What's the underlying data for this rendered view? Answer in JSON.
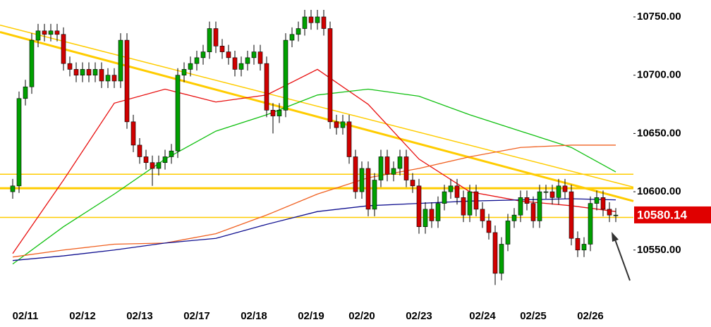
{
  "chart_data": {
    "type": "candlestick",
    "categories": [
      null,
      null,
      "02/11",
      null,
      null,
      null,
      null,
      null,
      null,
      null,
      null,
      "02/12",
      null,
      null,
      null,
      null,
      null,
      null,
      null,
      null,
      "02/13",
      null,
      null,
      null,
      null,
      null,
      null,
      null,
      null,
      "02/17",
      null,
      null,
      null,
      null,
      null,
      null,
      null,
      null,
      "02/18",
      null,
      null,
      null,
      null,
      null,
      null,
      null,
      null,
      "02/19",
      null,
      null,
      null,
      null,
      null,
      null,
      null,
      "02/20",
      null,
      null,
      null,
      null,
      null,
      null,
      null,
      null,
      "02/23",
      null,
      null,
      null,
      null,
      null,
      null,
      null,
      null,
      null,
      "02/24",
      null,
      null,
      null,
      null,
      null,
      null,
      null,
      "02/25",
      null,
      null,
      null,
      null,
      null,
      null,
      null,
      null,
      "02/26",
      null,
      null,
      null,
      null
    ],
    "open": [
      10600,
      10605,
      10680,
      10690,
      10730,
      10738,
      10735,
      10738,
      10735,
      10710,
      10705,
      10700,
      10705,
      10700,
      10705,
      10695,
      10700,
      10695,
      10730,
      10660,
      10640,
      10630,
      10625,
      10620,
      10625,
      10630,
      10635,
      10700,
      10705,
      10710,
      10715,
      10720,
      10740,
      10725,
      10720,
      10715,
      10705,
      10710,
      10715,
      10720,
      10710,
      10670,
      10665,
      10670,
      10730,
      10735,
      10740,
      10750,
      10745,
      10750,
      10740,
      10660,
      10655,
      10660,
      10630,
      10600,
      10620,
      10585,
      10610,
      10630,
      10615,
      10620,
      10630,
      10610,
      10605,
      10570,
      10585,
      10575,
      10590,
      10600,
      10605,
      10595,
      10580,
      10600,
      10585,
      10575,
      10565,
      10530,
      10555,
      10575,
      10580,
      10595,
      10590,
      10575,
      10600,
      10600,
      10595,
      10605,
      10600,
      10560,
      10550,
      10555,
      10590,
      10595,
      10585,
      10580
    ],
    "high": [
      10611,
      10686,
      10696,
      10736,
      10744,
      10744,
      10744,
      10744,
      10741,
      10716,
      10711,
      10711,
      10711,
      10711,
      10711,
      10706,
      10706,
      10736,
      10736,
      10666,
      10646,
      10636,
      10631,
      10631,
      10636,
      10641,
      10706,
      10711,
      10716,
      10721,
      10726,
      10746,
      10746,
      10731,
      10726,
      10721,
      10716,
      10721,
      10726,
      10726,
      10716,
      10676,
      10676,
      10736,
      10741,
      10746,
      10756,
      10756,
      10756,
      10756,
      10746,
      10666,
      10666,
      10666,
      10636,
      10626,
      10626,
      10616,
      10636,
      10636,
      10626,
      10636,
      10636,
      10616,
      10611,
      10591,
      10591,
      10596,
      10606,
      10611,
      10611,
      10601,
      10606,
      10606,
      10591,
      10581,
      10571,
      10561,
      10581,
      10586,
      10601,
      10601,
      10596,
      10606,
      10606,
      10606,
      10611,
      10611,
      10606,
      10566,
      10561,
      10596,
      10601,
      10601,
      10591,
      10586
    ],
    "low": [
      10594,
      10599,
      10674,
      10684,
      10724,
      10729,
      10729,
      10729,
      10704,
      10699,
      10694,
      10694,
      10694,
      10694,
      10689,
      10689,
      10689,
      10689,
      10654,
      10634,
      10624,
      10619,
      10605,
      10614,
      10619,
      10624,
      10629,
      10694,
      10699,
      10704,
      10709,
      10714,
      10719,
      10714,
      10709,
      10699,
      10699,
      10704,
      10709,
      10704,
      10664,
      10650,
      10659,
      10664,
      10724,
      10729,
      10734,
      10739,
      10739,
      10734,
      10654,
      10649,
      10649,
      10624,
      10594,
      10594,
      10579,
      10579,
      10604,
      10609,
      10609,
      10614,
      10604,
      10599,
      10564,
      10564,
      10569,
      10569,
      10584,
      10594,
      10589,
      10574,
      10574,
      10579,
      10569,
      10559,
      10520,
      10524,
      10549,
      10569,
      10574,
      10584,
      10569,
      10569,
      10594,
      10589,
      10589,
      10594,
      10554,
      10544,
      10544,
      10549,
      10584,
      10579,
      10574,
      10574
    ],
    "close": [
      10605,
      10680,
      10690,
      10730,
      10738,
      10735,
      10738,
      10735,
      10710,
      10705,
      10700,
      10705,
      10700,
      10705,
      10695,
      10700,
      10695,
      10730,
      10660,
      10640,
      10630,
      10625,
      10620,
      10625,
      10630,
      10635,
      10700,
      10705,
      10710,
      10715,
      10720,
      10740,
      10725,
      10720,
      10715,
      10705,
      10710,
      10715,
      10720,
      10710,
      10670,
      10665,
      10670,
      10730,
      10735,
      10740,
      10750,
      10745,
      10750,
      10740,
      10660,
      10655,
      10660,
      10630,
      10600,
      10620,
      10585,
      10610,
      10630,
      10615,
      10620,
      10630,
      10610,
      10605,
      10570,
      10585,
      10575,
      10590,
      10600,
      10605,
      10595,
      10580,
      10600,
      10585,
      10575,
      10565,
      10530,
      10555,
      10575,
      10580,
      10595,
      10590,
      10575,
      10600,
      10600,
      10595,
      10605,
      10600,
      10560,
      10550,
      10555,
      10590,
      10595,
      10585,
      10580,
      10580
    ],
    "up_color": "#00a000",
    "down_color": "#d00000",
    "lines": [
      {
        "color": "#e81010",
        "x": [
          0,
          8,
          16,
          24,
          32,
          40,
          48,
          56,
          64,
          72,
          80,
          88,
          95
        ],
        "values": [
          10547,
          10610,
          10676,
          10688,
          10677,
          10683,
          10705,
          10675,
          10628,
          10600,
          10592,
          10588,
          10583
        ]
      },
      {
        "color": "#10c010",
        "x": [
          0,
          8,
          16,
          24,
          32,
          40,
          48,
          56,
          64,
          72,
          80,
          88,
          95
        ],
        "values": [
          10538,
          10570,
          10598,
          10628,
          10652,
          10666,
          10683,
          10688,
          10682,
          10666,
          10652,
          10638,
          10617
        ]
      },
      {
        "color": "#f06020",
        "x": [
          0,
          8,
          16,
          24,
          32,
          40,
          48,
          56,
          64,
          72,
          80,
          88,
          95
        ],
        "values": [
          10544,
          10550,
          10555,
          10556,
          10564,
          10580,
          10598,
          10612,
          10620,
          10630,
          10638,
          10640,
          10640
        ]
      },
      {
        "color": "#101090",
        "x": [
          0,
          8,
          16,
          24,
          32,
          40,
          48,
          56,
          64,
          72,
          80,
          88,
          95
        ],
        "values": [
          10541,
          10545,
          10550,
          10556,
          10560,
          10572,
          10583,
          10588,
          10590,
          10592,
          10593,
          10594,
          10593
        ]
      }
    ],
    "levels": [
      10615,
      10603,
      10578
    ],
    "trendlines": [
      {
        "values": [
          10737,
          10592
        ]
      },
      {
        "values": [
          10743,
          10604
        ]
      }
    ],
    "level_color": "#ffcc00",
    "last_price": 10580.14,
    "ylim": [
      10501.5,
      10764.5
    ],
    "yticks": [
      {
        "value": 10750,
        "label": "10750.00"
      },
      {
        "value": 10700,
        "label": "10700.00"
      },
      {
        "value": 10650,
        "label": "10650.00"
      },
      {
        "value": 10600,
        "label": "10600.00"
      },
      {
        "value": 10550,
        "label": "10550.00"
      }
    ]
  }
}
